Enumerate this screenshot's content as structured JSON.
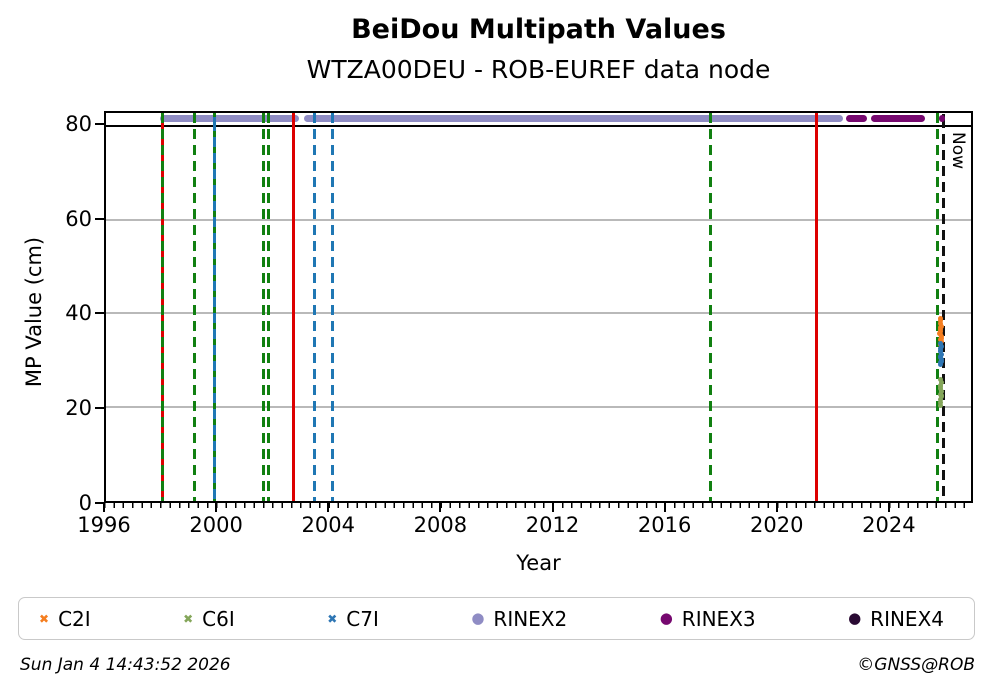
{
  "title": "BeiDou Multipath Values",
  "subtitle": "WTZA00DEU - ROB-EUREF data node",
  "axes": {
    "xlabel": "Year",
    "ylabel": "MP Value (cm)",
    "now_label": "Now",
    "xlim": [
      1996,
      2027
    ],
    "ylim": [
      0,
      82.7
    ],
    "x_ticks": [
      1996,
      2000,
      2004,
      2008,
      2012,
      2016,
      2020,
      2024
    ],
    "y_ticks": [
      0,
      20,
      40,
      60,
      80
    ],
    "y_gridlines": [
      20,
      40,
      60
    ]
  },
  "legend": {
    "items": [
      {
        "label": "C2I",
        "marker": "x",
        "color": "#f57e20"
      },
      {
        "label": "C6I",
        "marker": "x",
        "color": "#84a65a"
      },
      {
        "label": "C7I",
        "marker": "x",
        "color": "#2e76b4"
      },
      {
        "label": "RINEX2",
        "marker": "circle",
        "color": "#8f8cc4"
      },
      {
        "label": "RINEX3",
        "marker": "circle",
        "color": "#76086f"
      },
      {
        "label": "RINEX4",
        "marker": "circle",
        "color": "#2a0a33"
      }
    ]
  },
  "footer": {
    "timestamp": "Sun Jan  4 14:43:52 2026",
    "copyright": "©GNSS@ROB"
  },
  "chart_data": {
    "type": "scatter",
    "title": "BeiDou Multipath Values",
    "subtitle": "WTZA00DEU - ROB-EUREF data node",
    "xlabel": "Year",
    "ylabel": "MP Value (cm)",
    "xlim": [
      1996,
      2027
    ],
    "ylim": [
      0,
      82.7
    ],
    "grid": "horizontal",
    "legend_position": "bottom",
    "cap_line_y": 80,
    "now_line": {
      "year": 2026.01,
      "label": "Now",
      "color": "#111111"
    },
    "vlines": [
      {
        "year": 1998.03,
        "color": "#dd0000",
        "dash": false
      },
      {
        "year": 1998.03,
        "color": "#118011",
        "dash": true,
        "phase": 0
      },
      {
        "year": 1999.17,
        "color": "#118011",
        "dash": true,
        "phase": 0
      },
      {
        "year": 1999.89,
        "color": "#118011",
        "dash": true,
        "phase": 0
      },
      {
        "year": 1999.89,
        "color": "#1f77b4",
        "dash": true,
        "phase": 8
      },
      {
        "year": 2001.63,
        "color": "#118011",
        "dash": true,
        "phase": 0
      },
      {
        "year": 2001.83,
        "color": "#118011",
        "dash": true,
        "phase": 0
      },
      {
        "year": 2002.71,
        "color": "#dd0000",
        "dash": false
      },
      {
        "year": 2003.46,
        "color": "#1f77b4",
        "dash": true,
        "phase": 0
      },
      {
        "year": 2004.13,
        "color": "#1f77b4",
        "dash": true,
        "phase": 0
      },
      {
        "year": 2017.68,
        "color": "#118011",
        "dash": true,
        "phase": 0
      },
      {
        "year": 2021.46,
        "color": "#dd0000",
        "dash": false
      },
      {
        "year": 2025.8,
        "color": "#118011",
        "dash": true,
        "phase": 0
      },
      {
        "year": 2026.01,
        "color": "#111111",
        "dash": true,
        "phase": 5
      }
    ],
    "bands": [
      {
        "name": "RINEX2",
        "value": 81.5,
        "color": "#8f8cc4",
        "top": false,
        "segments": [
          [
            1997.93,
            2002.92
          ],
          [
            2003.08,
            2022.42
          ]
        ]
      },
      {
        "name": "RINEX3",
        "value": 81.5,
        "color": "#76086f",
        "top": true,
        "segments": [
          [
            2022.52,
            2023.28
          ],
          [
            2023.42,
            2025.35
          ],
          [
            2025.87,
            2026.03
          ]
        ]
      }
    ],
    "series": [
      {
        "name": "C2I",
        "color": "#f57e20",
        "points": [
          [
            2025.9,
            39.0
          ],
          [
            2025.92,
            38.4
          ],
          [
            2025.89,
            37.8
          ],
          [
            2025.93,
            37.2
          ],
          [
            2025.91,
            36.6
          ],
          [
            2025.92,
            36.1
          ],
          [
            2025.9,
            35.5
          ],
          [
            2025.94,
            35.0
          ],
          [
            2025.91,
            34.4
          ],
          [
            2025.93,
            33.9
          ],
          [
            2025.92,
            33.4
          ],
          [
            2025.9,
            36.9
          ],
          [
            2025.94,
            34.7
          ],
          [
            2025.88,
            35.8
          ]
        ]
      },
      {
        "name": "C7I",
        "color": "#2e76b4",
        "points": [
          [
            2025.91,
            33.6
          ],
          [
            2025.93,
            33.0
          ],
          [
            2025.9,
            32.4
          ],
          [
            2025.92,
            31.8
          ],
          [
            2025.94,
            31.2
          ],
          [
            2025.91,
            30.6
          ],
          [
            2025.93,
            30.1
          ],
          [
            2025.9,
            29.5
          ],
          [
            2025.92,
            29.0
          ],
          [
            2025.92,
            32.1
          ],
          [
            2025.89,
            30.9
          ],
          [
            2025.95,
            29.8
          ]
        ]
      },
      {
        "name": "C6I",
        "color": "#84a65a",
        "points": [
          [
            2025.91,
            25.8
          ],
          [
            2025.93,
            25.2
          ],
          [
            2025.9,
            24.6
          ],
          [
            2025.92,
            24.0
          ],
          [
            2025.94,
            23.4
          ],
          [
            2025.91,
            22.8
          ],
          [
            2025.93,
            22.2
          ],
          [
            2025.9,
            21.6
          ],
          [
            2025.92,
            21.0
          ],
          [
            2025.92,
            20.4
          ],
          [
            2025.89,
            24.3
          ],
          [
            2025.94,
            22.5
          ]
        ]
      }
    ]
  }
}
